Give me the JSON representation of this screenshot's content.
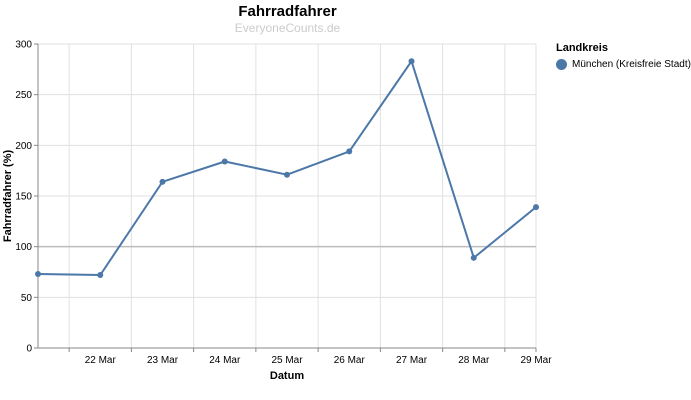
{
  "chart_data": {
    "type": "line",
    "title": "Fahrradfahrer",
    "subtitle": "EveryoneCounts.de",
    "xlabel": "Datum",
    "ylabel": "Fahrradfahrer (%)",
    "ylim": [
      0,
      300
    ],
    "yticks": [
      0,
      50,
      100,
      150,
      200,
      250,
      300
    ],
    "xrange": [
      "2020-03-21T12:00",
      "2020-03-29T12:00"
    ],
    "xticks": [
      {
        "date": "2020-03-22",
        "label": "22 Mar"
      },
      {
        "date": "2020-03-23",
        "label": "23 Mar"
      },
      {
        "date": "2020-03-24",
        "label": "24 Mar"
      },
      {
        "date": "2020-03-25",
        "label": "25 Mar"
      },
      {
        "date": "2020-03-26",
        "label": "26 Mar"
      },
      {
        "date": "2020-03-27",
        "label": "27 Mar"
      },
      {
        "date": "2020-03-28",
        "label": "28 Mar"
      },
      {
        "date": "2020-03-29",
        "label": "29 Mar"
      }
    ],
    "reference_line": 100,
    "grid": true,
    "legend": {
      "title": "Landkreis",
      "placement": "right"
    },
    "series": [
      {
        "name": "München (Kreisfreie Stadt)",
        "color": "#4c78a8",
        "points": [
          {
            "x": "2020-03-21T12:00",
            "y": 73
          },
          {
            "x": "2020-03-22T12:00",
            "y": 72
          },
          {
            "x": "2020-03-23T12:00",
            "y": 164
          },
          {
            "x": "2020-03-24T12:00",
            "y": 184
          },
          {
            "x": "2020-03-25T12:00",
            "y": 171
          },
          {
            "x": "2020-03-26T12:00",
            "y": 194
          },
          {
            "x": "2020-03-27T12:00",
            "y": 283
          },
          {
            "x": "2020-03-28T12:00",
            "y": 89
          },
          {
            "x": "2020-03-29T12:00",
            "y": 139
          }
        ]
      }
    ]
  }
}
